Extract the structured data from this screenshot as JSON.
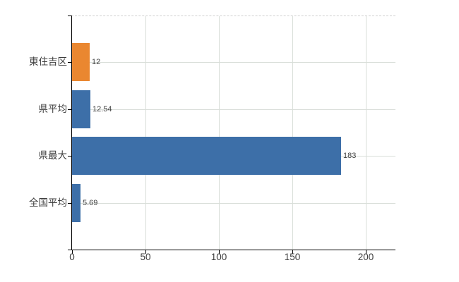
{
  "chart_data": {
    "type": "bar",
    "orientation": "horizontal",
    "title": "",
    "categories": [
      "東住吉区",
      "県平均",
      "県最大",
      "全国平均"
    ],
    "values": [
      12,
      12.54,
      183,
      5.69
    ],
    "value_labels": [
      "12",
      "12.54",
      "183",
      "5.69"
    ],
    "bar_colors": [
      "#ea8730",
      "#3d6fa8",
      "#3d6fa8",
      "#3d6fa8"
    ],
    "x_ticks": [
      0,
      50,
      100,
      150,
      200
    ],
    "x_tick_labels": [
      "0",
      "50",
      "100",
      "150",
      "200"
    ],
    "xlim": [
      0,
      220
    ],
    "grid": true,
    "legend": false
  },
  "colors": {
    "background": "#ffffff",
    "axis": "#000000",
    "grid": "#d9ded9",
    "top_border": "#cfcfcf",
    "label_text": "#3b3b3b",
    "value_text": "#3f3f3f"
  }
}
